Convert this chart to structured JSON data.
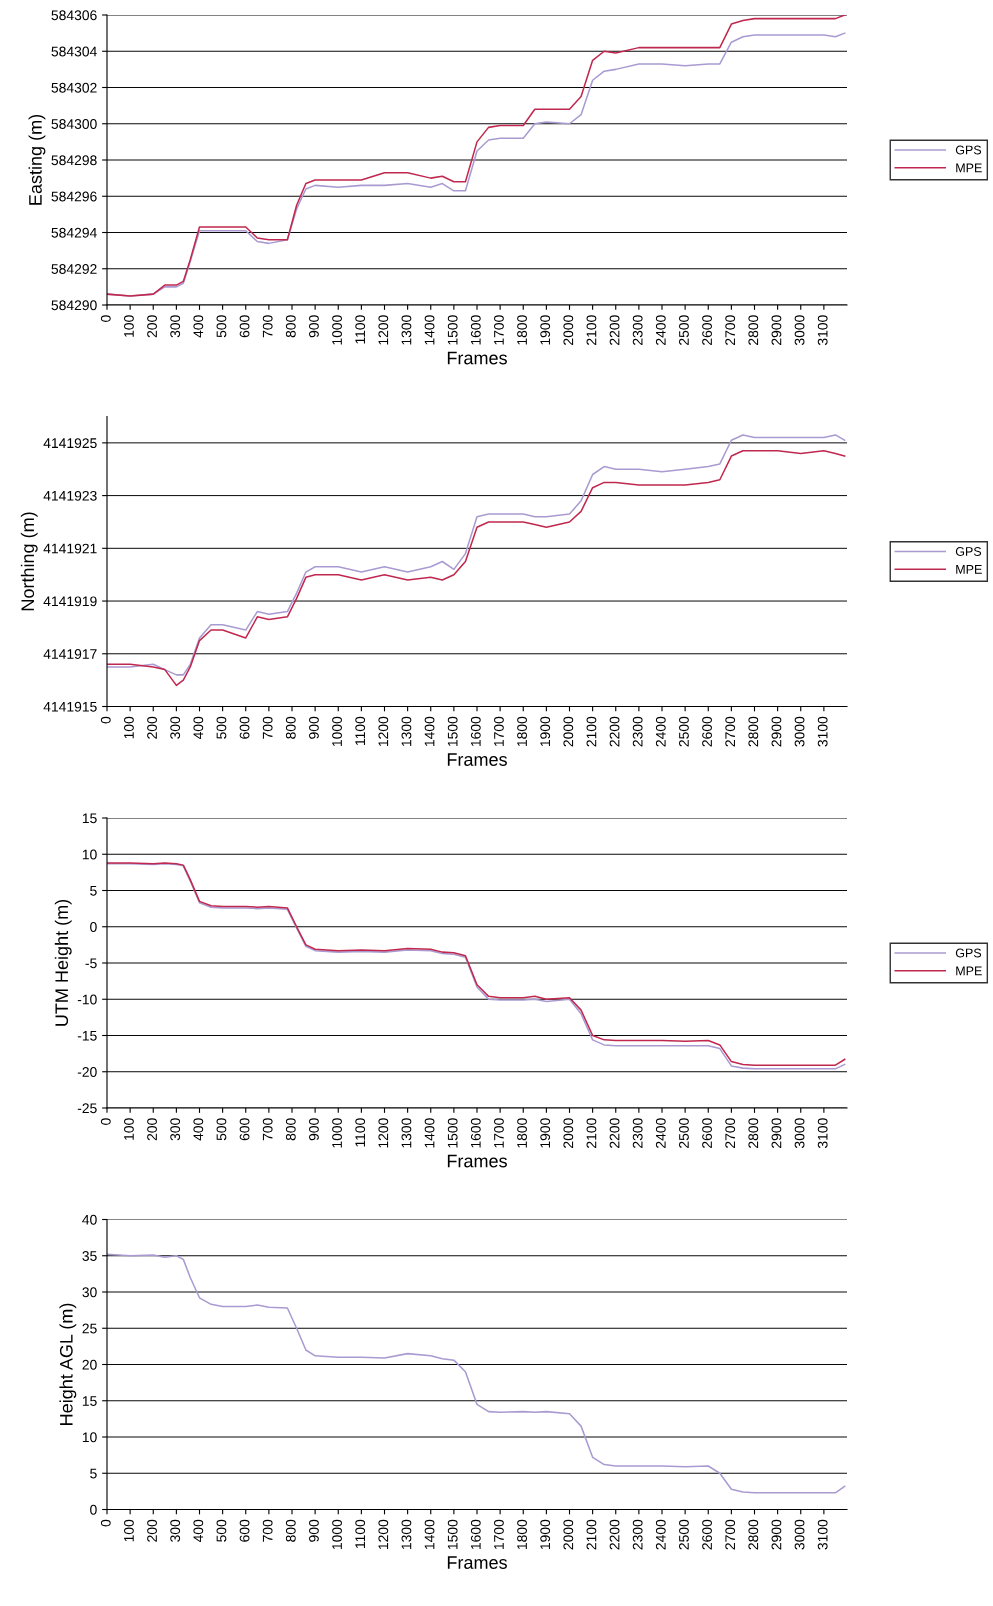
{
  "chart_data": [
    {
      "type": "line",
      "xlabel": "Frames",
      "ylabel": "Easting (m)",
      "grid": "y",
      "legend": "right",
      "line_style": "solid",
      "xlim": [
        0,
        3200
      ],
      "xticks": [
        0,
        100,
        200,
        300,
        400,
        500,
        600,
        700,
        800,
        900,
        1000,
        1100,
        1200,
        1300,
        1400,
        1500,
        1600,
        1700,
        1800,
        1900,
        2000,
        2100,
        2200,
        2300,
        2400,
        2500,
        2600,
        2700,
        2800,
        2900,
        3000,
        3100
      ],
      "ylim": [
        584290,
        584306
      ],
      "yticks": [
        584290,
        584292,
        584294,
        584296,
        584298,
        584300,
        584302,
        584304,
        584306
      ],
      "x": [
        0,
        100,
        200,
        250,
        300,
        330,
        360,
        400,
        450,
        500,
        600,
        650,
        700,
        780,
        820,
        860,
        900,
        1000,
        1100,
        1200,
        1300,
        1400,
        1450,
        1500,
        1550,
        1600,
        1650,
        1700,
        1800,
        1850,
        1900,
        2000,
        2050,
        2100,
        2150,
        2200,
        2300,
        2400,
        2500,
        2600,
        2650,
        2700,
        2750,
        2800,
        2900,
        3000,
        3100,
        3150,
        3190
      ],
      "series": [
        {
          "name": "GPS",
          "color": "#a99bd1",
          "values": [
            584290.6,
            584290.5,
            584290.6,
            584291,
            584291,
            584291.2,
            584292.4,
            584294.1,
            584294.1,
            584294.1,
            584294.1,
            584293.5,
            584293.4,
            584293.6,
            584295.3,
            584296.4,
            584296.6,
            584296.5,
            584296.6,
            584296.6,
            584296.7,
            584296.5,
            584296.7,
            584296.3,
            584296.3,
            584298.5,
            584299.1,
            584299.2,
            584299.2,
            584300,
            584300.1,
            584300,
            584300.5,
            584302.4,
            584302.9,
            584303,
            584303.3,
            584303.3,
            584303.2,
            584303.3,
            584303.3,
            584304.5,
            584304.8,
            584304.9,
            584304.9,
            584304.9,
            584304.9,
            584304.8,
            584305
          ]
        },
        {
          "name": "MPE",
          "color": "#c0284f",
          "values": [
            584290.6,
            584290.5,
            584290.6,
            584291.1,
            584291.1,
            584291.3,
            584292.5,
            584294.3,
            584294.3,
            584294.3,
            584294.3,
            584293.7,
            584293.6,
            584293.6,
            584295.5,
            584296.7,
            584296.9,
            584296.9,
            584296.9,
            584297.3,
            584297.3,
            584297,
            584297.1,
            584296.8,
            584296.8,
            584299,
            584299.8,
            584299.9,
            584299.9,
            584300.8,
            584300.8,
            584300.8,
            584301.5,
            584303.5,
            584304,
            584303.9,
            584304.2,
            584304.2,
            584304.2,
            584304.2,
            584304.2,
            584305.5,
            584305.7,
            584305.8,
            584305.8,
            584305.8,
            584305.8,
            584305.8,
            584306
          ]
        }
      ]
    },
    {
      "type": "line",
      "xlabel": "Frames",
      "ylabel": "Northing (m)",
      "grid": "y",
      "legend": "right",
      "line_style": "solid",
      "xlim": [
        0,
        3200
      ],
      "xticks": [
        0,
        100,
        200,
        300,
        400,
        500,
        600,
        700,
        800,
        900,
        1000,
        1100,
        1200,
        1300,
        1400,
        1500,
        1600,
        1700,
        1800,
        1900,
        2000,
        2100,
        2200,
        2300,
        2400,
        2500,
        2600,
        2700,
        2800,
        2900,
        3000,
        3100
      ],
      "ylim": [
        4141915,
        4141926
      ],
      "yticks": [
        4141915,
        4141917,
        4141919,
        4141921,
        4141923,
        4141925
      ],
      "x": [
        0,
        100,
        200,
        250,
        300,
        330,
        360,
        400,
        450,
        500,
        600,
        650,
        700,
        780,
        820,
        860,
        900,
        1000,
        1100,
        1200,
        1300,
        1400,
        1450,
        1500,
        1550,
        1600,
        1650,
        1700,
        1800,
        1850,
        1900,
        2000,
        2050,
        2100,
        2150,
        2200,
        2300,
        2400,
        2500,
        2600,
        2650,
        2700,
        2750,
        2800,
        2900,
        3000,
        3100,
        3150,
        3190
      ],
      "series": [
        {
          "name": "GPS",
          "color": "#a99bd1",
          "values": [
            4141916.5,
            4141916.5,
            4141916.6,
            4141916.4,
            4141916.2,
            4141916.2,
            4141916.6,
            4141917.6,
            4141918.1,
            4141918.1,
            4141917.9,
            4141918.6,
            4141918.5,
            4141918.6,
            4141919.3,
            4141920.1,
            4141920.3,
            4141920.3,
            4141920.1,
            4141920.3,
            4141920.1,
            4141920.3,
            4141920.5,
            4141920.2,
            4141920.8,
            4141922.2,
            4141922.3,
            4141922.3,
            4141922.3,
            4141922.2,
            4141922.2,
            4141922.3,
            4141922.8,
            4141923.8,
            4141924.1,
            4141924,
            4141924,
            4141923.9,
            4141924,
            4141924.1,
            4141924.2,
            4141925.1,
            4141925.3,
            4141925.2,
            4141925.2,
            4141925.2,
            4141925.2,
            4141925.3,
            4141925.1
          ]
        },
        {
          "name": "MPE",
          "color": "#c0284f",
          "values": [
            4141916.6,
            4141916.6,
            4141916.5,
            4141916.4,
            4141915.8,
            4141916,
            4141916.5,
            4141917.5,
            4141917.9,
            4141917.9,
            4141917.6,
            4141918.4,
            4141918.3,
            4141918.4,
            4141919.1,
            4141919.9,
            4141920,
            4141920,
            4141919.8,
            4141920,
            4141919.8,
            4141919.9,
            4141919.8,
            4141920,
            4141920.5,
            4141921.8,
            4141922,
            4141922,
            4141922,
            4141921.9,
            4141921.8,
            4141922,
            4141922.4,
            4141923.3,
            4141923.5,
            4141923.5,
            4141923.4,
            4141923.4,
            4141923.4,
            4141923.5,
            4141923.6,
            4141924.5,
            4141924.7,
            4141924.7,
            4141924.7,
            4141924.6,
            4141924.7,
            4141924.6,
            4141924.5
          ]
        }
      ]
    },
    {
      "type": "line",
      "xlabel": "Frames",
      "ylabel": "UTM Height (m)",
      "grid": "y",
      "legend": "right",
      "line_style": "solid",
      "xlim": [
        0,
        3200
      ],
      "xticks": [
        0,
        100,
        200,
        300,
        400,
        500,
        600,
        700,
        800,
        900,
        1000,
        1100,
        1200,
        1300,
        1400,
        1500,
        1600,
        1700,
        1800,
        1900,
        2000,
        2100,
        2200,
        2300,
        2400,
        2500,
        2600,
        2700,
        2800,
        2900,
        3000,
        3100
      ],
      "ylim": [
        -25,
        15
      ],
      "yticks": [
        -25,
        -20,
        -15,
        -10,
        -5,
        0,
        5,
        10,
        15
      ],
      "x": [
        0,
        100,
        200,
        250,
        300,
        330,
        360,
        400,
        450,
        500,
        600,
        650,
        700,
        780,
        820,
        860,
        900,
        1000,
        1100,
        1200,
        1300,
        1400,
        1450,
        1500,
        1550,
        1600,
        1650,
        1700,
        1800,
        1850,
        1900,
        2000,
        2050,
        2100,
        2150,
        2200,
        2300,
        2400,
        2500,
        2600,
        2650,
        2700,
        2750,
        2800,
        2900,
        3000,
        3100,
        3150,
        3190
      ],
      "series": [
        {
          "name": "GPS",
          "color": "#a99bd1",
          "values": [
            8.7,
            8.7,
            8.6,
            8.7,
            8.6,
            8.4,
            6.3,
            3.3,
            2.7,
            2.6,
            2.6,
            2.5,
            2.6,
            2.4,
            -0.2,
            -2.7,
            -3.3,
            -3.5,
            -3.4,
            -3.5,
            -3.2,
            -3.3,
            -3.7,
            -3.8,
            -4.2,
            -8.3,
            -10,
            -10.1,
            -10.1,
            -10,
            -10.3,
            -10,
            -12,
            -15.6,
            -16.3,
            -16.4,
            -16.4,
            -16.4,
            -16.4,
            -16.4,
            -16.8,
            -19.2,
            -19.5,
            -19.6,
            -19.6,
            -19.6,
            -19.6,
            -19.6,
            -19
          ]
        },
        {
          "name": "MPE",
          "color": "#c0284f",
          "values": [
            8.8,
            8.8,
            8.7,
            8.8,
            8.7,
            8.5,
            6.5,
            3.5,
            2.9,
            2.8,
            2.8,
            2.7,
            2.8,
            2.6,
            0,
            -2.5,
            -3.1,
            -3.3,
            -3.2,
            -3.3,
            -3,
            -3.1,
            -3.5,
            -3.6,
            -4,
            -8,
            -9.6,
            -9.8,
            -9.8,
            -9.6,
            -10,
            -9.8,
            -11.5,
            -15,
            -15.6,
            -15.7,
            -15.7,
            -15.7,
            -15.8,
            -15.7,
            -16.3,
            -18.6,
            -19,
            -19.1,
            -19.1,
            -19.1,
            -19.1,
            -19.1,
            -18.3
          ]
        }
      ]
    },
    {
      "type": "line",
      "xlabel": "Frames",
      "ylabel": "Height AGL (m)",
      "grid": "y",
      "line_style": "solid",
      "xlim": [
        0,
        3200
      ],
      "xticks": [
        0,
        100,
        200,
        300,
        400,
        500,
        600,
        700,
        800,
        900,
        1000,
        1100,
        1200,
        1300,
        1400,
        1500,
        1600,
        1700,
        1800,
        1900,
        2000,
        2100,
        2200,
        2300,
        2400,
        2500,
        2600,
        2700,
        2800,
        2900,
        3000,
        3100
      ],
      "ylim": [
        0,
        40
      ],
      "yticks": [
        0,
        5,
        10,
        15,
        20,
        25,
        30,
        35,
        40
      ],
      "x": [
        0,
        100,
        200,
        250,
        300,
        330,
        360,
        400,
        450,
        500,
        600,
        650,
        700,
        780,
        820,
        860,
        900,
        1000,
        1100,
        1200,
        1300,
        1400,
        1450,
        1500,
        1550,
        1600,
        1650,
        1700,
        1800,
        1850,
        1900,
        2000,
        2050,
        2100,
        2150,
        2200,
        2300,
        2400,
        2500,
        2600,
        2650,
        2700,
        2750,
        2800,
        2900,
        3000,
        3100,
        3150,
        3190
      ],
      "series": [
        {
          "color": "#a99bd1",
          "values": [
            35.2,
            35,
            35.1,
            34.8,
            35,
            34.5,
            32,
            29.2,
            28.3,
            28,
            28,
            28.2,
            27.9,
            27.8,
            25,
            22,
            21.2,
            21,
            21,
            20.9,
            21.5,
            21.2,
            20.8,
            20.6,
            19,
            14.5,
            13.5,
            13.4,
            13.5,
            13.4,
            13.5,
            13.2,
            11.5,
            7.2,
            6.2,
            6,
            6,
            6,
            5.9,
            6,
            5,
            2.8,
            2.4,
            2.3,
            2.3,
            2.3,
            2.3,
            2.3,
            3.2
          ]
        }
      ]
    }
  ]
}
